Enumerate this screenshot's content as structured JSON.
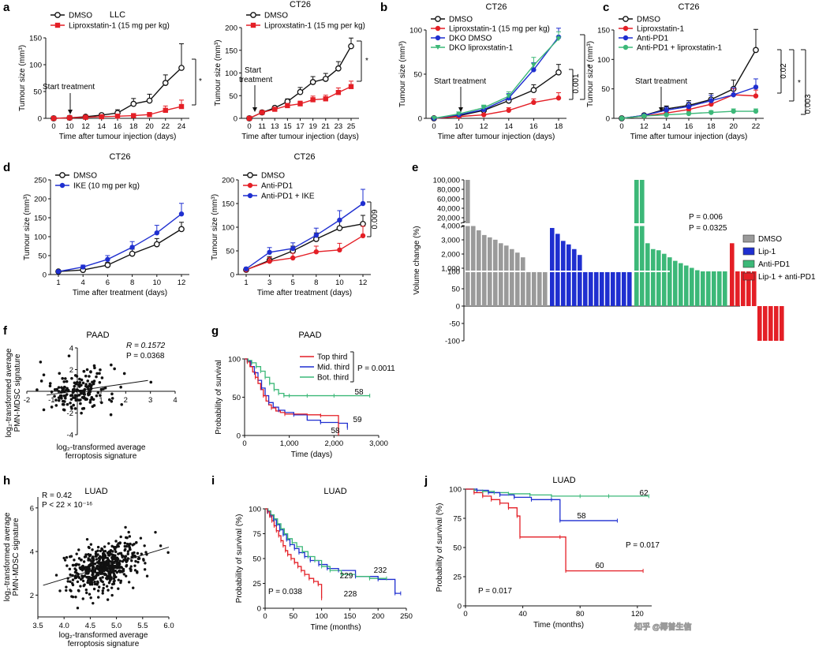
{
  "panels": {
    "a": "a",
    "b": "b",
    "c": "c",
    "d": "d",
    "e": "e",
    "f": "f",
    "g": "g",
    "h": "h",
    "i": "i",
    "j": "j"
  },
  "colors": {
    "dmso": "#111111",
    "red": "#e41f26",
    "blue": "#1f2fd0",
    "green": "#3cb878",
    "grey": "#9a9a9a"
  },
  "watermark": "知乎 @椰普生信",
  "chart_data": [
    {
      "id": "a1",
      "type": "line",
      "title": "LLC",
      "xlabel": "Time after tumour injection (days)",
      "ylabel": "Tumour size (mm³)",
      "x": [
        0,
        10,
        12,
        14,
        16,
        18,
        20,
        22,
        24
      ],
      "ylim": [
        0,
        150
      ],
      "yticks": [
        0,
        50,
        100,
        150
      ],
      "series": [
        {
          "name": "DMSO",
          "color": "#111111",
          "marker": "open",
          "values": [
            0,
            1,
            3,
            6,
            10,
            27,
            33,
            66,
            94
          ],
          "err": [
            0,
            1,
            2,
            3,
            6,
            10,
            12,
            15,
            45
          ]
        },
        {
          "name": "Liproxstatin-1 (15 mg per kg)",
          "color": "#e41f26",
          "marker": "square",
          "values": [
            0,
            1,
            2,
            3,
            4,
            5,
            7,
            15,
            22
          ],
          "err": [
            0,
            1,
            1,
            2,
            2,
            3,
            4,
            8,
            12
          ]
        }
      ],
      "annotations": [
        "Start treatment",
        "*"
      ]
    },
    {
      "id": "a2",
      "type": "line",
      "title": "CT26",
      "xlabel": "Time after tumour injection (days)",
      "ylabel": "Tumour size (mm³)",
      "x": [
        0,
        11,
        13,
        15,
        17,
        19,
        21,
        23,
        25
      ],
      "ylim": [
        0,
        200
      ],
      "yticks": [
        0,
        50,
        100,
        150,
        200
      ],
      "series": [
        {
          "name": "DMSO",
          "color": "#111111",
          "marker": "open",
          "values": [
            0,
            13,
            23,
            37,
            58,
            80,
            87,
            110,
            159
          ],
          "err": [
            0,
            3,
            3,
            6,
            10,
            12,
            12,
            15,
            18
          ]
        },
        {
          "name": "Liproxstatin-1 (15 mg per kg)",
          "color": "#e41f26",
          "marker": "square",
          "values": [
            0,
            13,
            20,
            28,
            32,
            41,
            43,
            57,
            70
          ],
          "err": [
            0,
            3,
            3,
            5,
            6,
            8,
            8,
            10,
            12
          ]
        }
      ],
      "annotations": [
        "Start treatment",
        "*"
      ]
    },
    {
      "id": "b",
      "type": "line",
      "title": "CT26",
      "xlabel": "Time after tumour injection (days)",
      "ylabel": "Tumour size (mm³)",
      "x": [
        0,
        10,
        12,
        14,
        16,
        18
      ],
      "ylim": [
        0,
        100
      ],
      "yticks": [
        0,
        50,
        100
      ],
      "series": [
        {
          "name": "DMSO",
          "color": "#111111",
          "marker": "open",
          "values": [
            0,
            3,
            9,
            20,
            32,
            52
          ],
          "err": [
            0,
            1,
            2,
            4,
            6,
            9
          ]
        },
        {
          "name": "Liproxstatin-1 (15 mg per kg)",
          "color": "#e41f26",
          "marker": "circle",
          "values": [
            0,
            2,
            4,
            9,
            18,
            23
          ],
          "err": [
            0,
            1,
            1,
            3,
            4,
            6
          ]
        },
        {
          "name": "DKO DMSO",
          "color": "#1f2fd0",
          "marker": "circle",
          "values": [
            0,
            4,
            10,
            23,
            55,
            92
          ],
          "err": [
            0,
            1,
            3,
            5,
            8,
            10
          ]
        },
        {
          "name": "DKO liproxstatin-1",
          "color": "#3cb878",
          "marker": "triangle",
          "values": [
            0,
            5,
            12,
            25,
            60,
            90
          ],
          "err": [
            0,
            1,
            3,
            5,
            9,
            8
          ]
        }
      ],
      "annotations": [
        "Start treatment",
        "0.001",
        "*"
      ]
    },
    {
      "id": "c",
      "type": "line",
      "title": "CT26",
      "xlabel": "Time after tumour injection (days)",
      "ylabel": "Tumour size (mm³)",
      "x": [
        0,
        12,
        14,
        16,
        18,
        20,
        22
      ],
      "ylim": [
        0,
        150
      ],
      "yticks": [
        0,
        50,
        100,
        150
      ],
      "series": [
        {
          "name": "DMSO",
          "color": "#111111",
          "marker": "open",
          "values": [
            0,
            5,
            16,
            22,
            32,
            50,
            116
          ],
          "err": [
            0,
            2,
            5,
            8,
            10,
            15,
            35
          ]
        },
        {
          "name": "Liproxstatin-1",
          "color": "#e41f26",
          "marker": "circle",
          "values": [
            0,
            4,
            9,
            15,
            24,
            40,
            38
          ],
          "err": [
            0,
            2,
            3,
            5,
            7,
            10,
            10
          ]
        },
        {
          "name": "Anti-PD1",
          "color": "#1f2fd0",
          "marker": "circle",
          "values": [
            0,
            5,
            14,
            20,
            30,
            40,
            53
          ],
          "err": [
            0,
            2,
            5,
            7,
            9,
            12,
            14
          ]
        },
        {
          "name": "Anti-PD1 + liproxstatin-1",
          "color": "#3cb878",
          "marker": "circle",
          "values": [
            0,
            4,
            6,
            8,
            10,
            12,
            12
          ],
          "err": [
            0,
            1,
            2,
            3,
            3,
            4,
            4
          ]
        }
      ],
      "annotations": [
        "Start treatment",
        "0.02",
        "*",
        "0.003"
      ]
    },
    {
      "id": "d1",
      "type": "line",
      "title": "CT26",
      "xlabel": "Time after treatment (days)",
      "ylabel": "Tumour size (mm³)",
      "x": [
        1,
        4,
        6,
        8,
        10,
        12
      ],
      "ylim": [
        0,
        250
      ],
      "yticks": [
        0,
        50,
        100,
        150,
        200,
        250
      ],
      "series": [
        {
          "name": "DMSO",
          "color": "#111111",
          "marker": "open",
          "values": [
            8,
            12,
            25,
            55,
            80,
            120
          ],
          "err": [
            2,
            3,
            7,
            12,
            15,
            18
          ]
        },
        {
          "name": "IKE (10 mg per kg)",
          "color": "#1f2fd0",
          "marker": "circle",
          "values": [
            8,
            20,
            40,
            72,
            110,
            160
          ],
          "err": [
            2,
            5,
            10,
            15,
            20,
            28
          ]
        }
      ]
    },
    {
      "id": "d2",
      "type": "line",
      "title": "CT26",
      "xlabel": "Time after treatment (days)",
      "ylabel": "Tumour size (mm³)",
      "x": [
        1,
        3,
        5,
        8,
        10,
        12
      ],
      "ylim": [
        0,
        200
      ],
      "yticks": [
        0,
        50,
        100,
        150,
        200
      ],
      "series": [
        {
          "name": "DMSO",
          "color": "#111111",
          "marker": "open",
          "values": [
            10,
            30,
            50,
            75,
            98,
            107
          ],
          "err": [
            3,
            8,
            10,
            13,
            15,
            18
          ]
        },
        {
          "name": "Anti-PD1",
          "color": "#e41f26",
          "marker": "circle",
          "values": [
            10,
            28,
            35,
            48,
            52,
            82
          ],
          "err": [
            3,
            8,
            10,
            12,
            14,
            20
          ]
        },
        {
          "name": "Anti-PD1 + IKE",
          "color": "#1f2fd0",
          "marker": "circle",
          "values": [
            12,
            47,
            55,
            83,
            115,
            150
          ],
          "err": [
            3,
            10,
            12,
            15,
            20,
            30
          ]
        }
      ],
      "annotations": [
        "0.009"
      ]
    },
    {
      "id": "e",
      "type": "bar",
      "title": "",
      "ylabel": "Volume change (%)",
      "ytick_labels": [
        "100,000",
        "80,000",
        "60,000",
        "40,000",
        "20,000",
        "4,000",
        "3,000",
        "2,000",
        "1,000",
        "100",
        "50",
        "0",
        "-50",
        "-100"
      ],
      "series": [
        {
          "name": "DMSO",
          "color": "#9a9a9a",
          "values": [
            100000,
            4000,
            3600,
            3200,
            3000,
            2800,
            2500,
            2300,
            2000,
            1700,
            1300,
            100,
            100,
            100,
            100
          ]
        },
        {
          "name": "Lip-1",
          "color": "#1f2fd0",
          "values": [
            3800,
            3300,
            2700,
            2400,
            2000,
            1500,
            100,
            100,
            100,
            100,
            100,
            100,
            100,
            100,
            100
          ]
        },
        {
          "name": "Anti-PD1",
          "color": "#3cb878",
          "values": [
            4200,
            4100,
            2500,
            2000,
            1900,
            1600,
            1300,
            1000,
            800,
            600,
            400,
            200,
            100,
            100,
            100,
            100,
            100
          ]
        },
        {
          "name": "Lip-1 + anti-PD1",
          "color": "#e41f26",
          "values": [
            2500,
            100,
            100,
            100,
            100,
            -100,
            -100,
            -100,
            -100,
            -100
          ]
        }
      ],
      "annotations": [
        "P = 0.006",
        "P = 0.0325"
      ]
    },
    {
      "id": "f",
      "type": "scatter",
      "title": "PAAD",
      "xlabel": "log₂-transformed average ferroptosis signature",
      "ylabel": "log₂-transformed average PMN-MDSC signature",
      "xlim": [
        -2,
        4
      ],
      "ylim": [
        -4,
        4
      ],
      "xticks": [
        -2,
        -1,
        1,
        2,
        3,
        4
      ],
      "yticks": [
        -4,
        -2,
        2,
        4
      ],
      "R": "R = 0.1572",
      "P": "P = 0.0368",
      "n": 180
    },
    {
      "id": "g",
      "type": "line",
      "title": "PAAD",
      "xlabel": "Time (days)",
      "ylabel": "Probability of survival",
      "xlim": [
        0,
        3000
      ],
      "ylim": [
        0,
        100
      ],
      "xticks": [
        0,
        1000,
        2000,
        3000
      ],
      "xtick_labels": [
        "0",
        "1,000",
        "2,000",
        "3,000"
      ],
      "yticks": [
        0,
        50,
        100
      ],
      "series": [
        {
          "name": "Top third",
          "color": "#e41f26",
          "n": "58"
        },
        {
          "name": "Mid. third",
          "color": "#1f2fd0",
          "n": "59"
        },
        {
          "name": "Bot. third",
          "color": "#3cb878",
          "n": "58"
        }
      ],
      "P": "P = 0.0011"
    },
    {
      "id": "h",
      "type": "scatter",
      "title": "LUAD",
      "xlabel": "log₂-transformed average ferroptosis signature",
      "ylabel": "log₂-transformed average PMN-MDSC signature",
      "xlim": [
        3.5,
        6
      ],
      "ylim": [
        1,
        6.5
      ],
      "xticks": [
        3.5,
        4,
        4.5,
        5,
        5.5,
        6
      ],
      "xtick_labels": [
        "3.5",
        "4.0",
        "4.5",
        "5.0",
        "5.5",
        "6.0"
      ],
      "yticks": [
        2,
        4,
        6
      ],
      "R": "R = 0.42",
      "P": "P < 22 × 10⁻¹⁶",
      "n": 520
    },
    {
      "id": "i",
      "type": "line",
      "title": "LUAD",
      "xlabel": "Time (months)",
      "ylabel": "Probability of survival (%)",
      "xlim": [
        0,
        250
      ],
      "ylim": [
        0,
        100
      ],
      "xticks": [
        0,
        50,
        100,
        150,
        200,
        250
      ],
      "yticks": [
        0,
        25,
        50,
        75,
        100
      ],
      "series": [
        {
          "name": "Top third",
          "color": "#e41f26",
          "n": "228"
        },
        {
          "name": "Mid. third",
          "color": "#1f2fd0",
          "n": "232"
        },
        {
          "name": "Bot. third",
          "color": "#3cb878",
          "n": "229"
        }
      ],
      "P": "P = 0.038"
    },
    {
      "id": "j",
      "type": "line",
      "title": "LUAD",
      "xlabel": "Time (months)",
      "ylabel": "Probability of survival (%)",
      "xlim": [
        0,
        130
      ],
      "ylim": [
        0,
        100
      ],
      "xticks": [
        0,
        40,
        80,
        120
      ],
      "yticks": [
        0,
        25,
        50,
        75,
        100
      ],
      "series": [
        {
          "name": "Top",
          "color": "#e41f26",
          "n": "60"
        },
        {
          "name": "Mid",
          "color": "#1f2fd0",
          "n": "58"
        },
        {
          "name": "Bot",
          "color": "#3cb878",
          "n": "62"
        }
      ],
      "P": [
        "P = 0.017",
        "P = 0.017"
      ]
    }
  ]
}
